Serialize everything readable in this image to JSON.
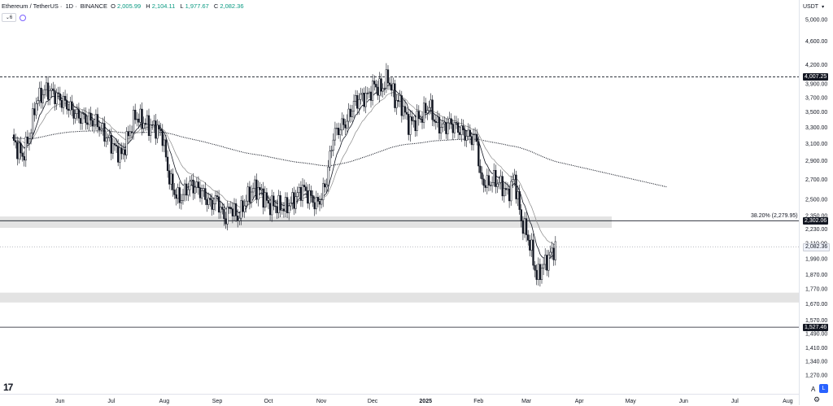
{
  "header": {
    "pair": "Ethereum / TetherUS",
    "timeframe": "1D",
    "exchange": "BINANCE",
    "o_label": "O",
    "o_value": "2,005.99",
    "h_label": "H",
    "h_value": "2,104.11",
    "l_label": "L",
    "l_value": "1,977.67",
    "c_label": "C",
    "c_value": "2,082.36",
    "indicators_count": "6"
  },
  "currency": "USDT",
  "buttons": {
    "auto": "A",
    "log": "L"
  },
  "colors": {
    "up": "#089981",
    "down": "#131722",
    "candle": "#131722",
    "zone": "#d9d9d9",
    "ema_fast": "#131722",
    "ema_slow": "#888888",
    "ema_long": "#131722"
  },
  "chart_data": {
    "type": "candlestick",
    "title": "Ethereum / TetherUS · 1D · BINANCE",
    "scale": "log",
    "ylim": [
      1200,
      5400
    ],
    "price_ticks": [
      "5,000.00",
      "4,600.00",
      "4,200.00",
      "3,900.00",
      "3,700.00",
      "3,500.00",
      "3,300.00",
      "3,100.00",
      "2,900.00",
      "2,700.00",
      "2,500.00",
      "2,350.00",
      "2,230.00",
      "2,110.00",
      "1,990.00",
      "1,870.00",
      "1,770.00",
      "1,670.00",
      "1,570.00",
      "1,490.00",
      "1,410.00",
      "1,340.00",
      "1,270.00"
    ],
    "price_tick_values": [
      5000,
      4600,
      4200,
      3900,
      3700,
      3500,
      3300,
      3100,
      2900,
      2700,
      2500,
      2350,
      2230,
      2110,
      1990,
      1870,
      1770,
      1670,
      1570,
      1490,
      1410,
      1340,
      1270
    ],
    "time_labels": [
      {
        "label": "Jun",
        "day": 28
      },
      {
        "label": "Jul",
        "day": 58
      },
      {
        "label": "Aug",
        "day": 89
      },
      {
        "label": "Sep",
        "day": 120
      },
      {
        "label": "Oct",
        "day": 150
      },
      {
        "label": "Nov",
        "day": 181
      },
      {
        "label": "Dec",
        "day": 211
      },
      {
        "label": "2025",
        "day": 242,
        "bold": true
      },
      {
        "label": "Feb",
        "day": 273
      },
      {
        "label": "Mar",
        "day": 301
      },
      {
        "label": "Apr",
        "day": 332
      },
      {
        "label": "May",
        "day": 362
      },
      {
        "label": "Jun",
        "day": 393
      },
      {
        "label": "Jul",
        "day": 423
      },
      {
        "label": "Aug",
        "day": 454
      }
    ],
    "x_axis": {
      "start_date": "2024-05-05",
      "end_day": 468
    },
    "closes": [
      [
        0,
        3150
      ],
      [
        6,
        2950
      ],
      [
        10,
        3180
      ],
      [
        14,
        3650
      ],
      [
        20,
        3820
      ],
      [
        24,
        3760
      ],
      [
        32,
        3600
      ],
      [
        38,
        3450
      ],
      [
        44,
        3400
      ],
      [
        50,
        3350
      ],
      [
        56,
        3150
      ],
      [
        60,
        3050
      ],
      [
        64,
        2960
      ],
      [
        68,
        3200
      ],
      [
        72,
        3450
      ],
      [
        76,
        3380
      ],
      [
        80,
        3320
      ],
      [
        84,
        3300
      ],
      [
        88,
        3200
      ],
      [
        91,
        2800
      ],
      [
        94,
        2600
      ],
      [
        98,
        2500
      ],
      [
        104,
        2650
      ],
      [
        108,
        2620
      ],
      [
        112,
        2550
      ],
      [
        116,
        2450
      ],
      [
        120,
        2500
      ],
      [
        124,
        2320
      ],
      [
        128,
        2430
      ],
      [
        132,
        2330
      ],
      [
        138,
        2530
      ],
      [
        142,
        2620
      ],
      [
        146,
        2560
      ],
      [
        150,
        2450
      ],
      [
        155,
        2440
      ],
      [
        160,
        2420
      ],
      [
        165,
        2500
      ],
      [
        170,
        2610
      ],
      [
        174,
        2530
      ],
      [
        178,
        2450
      ],
      [
        181,
        2520
      ],
      [
        184,
        2700
      ],
      [
        188,
        3200
      ],
      [
        192,
        3300
      ],
      [
        196,
        3380
      ],
      [
        200,
        3620
      ],
      [
        204,
        3700
      ],
      [
        208,
        3720
      ],
      [
        212,
        3880
      ],
      [
        216,
        3820
      ],
      [
        220,
        4000
      ],
      [
        224,
        3680
      ],
      [
        228,
        3600
      ],
      [
        232,
        3350
      ],
      [
        236,
        3380
      ],
      [
        240,
        3450
      ],
      [
        244,
        3600
      ],
      [
        248,
        3350
      ],
      [
        252,
        3300
      ],
      [
        256,
        3350
      ],
      [
        260,
        3300
      ],
      [
        266,
        3200
      ],
      [
        272,
        3150
      ],
      [
        274,
        2700
      ],
      [
        278,
        2650
      ],
      [
        282,
        2700
      ],
      [
        286,
        2650
      ],
      [
        290,
        2550
      ],
      [
        294,
        2720
      ],
      [
        298,
        2300
      ],
      [
        301,
        2200
      ],
      [
        304,
        2050
      ],
      [
        307,
        1850
      ],
      [
        310,
        1920
      ],
      [
        314,
        2000
      ],
      [
        318,
        2082
      ]
    ],
    "resistance_level": {
      "label": "4,007.25",
      "value": 4007.25
    },
    "fib_level": {
      "label": "38.20% (2,279.95)",
      "tag": "2,302.06",
      "value": 2302.06
    },
    "last_price": {
      "label": "2,082.36",
      "value": 2082.36
    },
    "support_level": {
      "label": "1,527.46",
      "value": 1527.46
    },
    "zones": [
      {
        "from": 2240,
        "to": 2340
      },
      {
        "from": 1680,
        "to": 1745
      }
    ]
  }
}
